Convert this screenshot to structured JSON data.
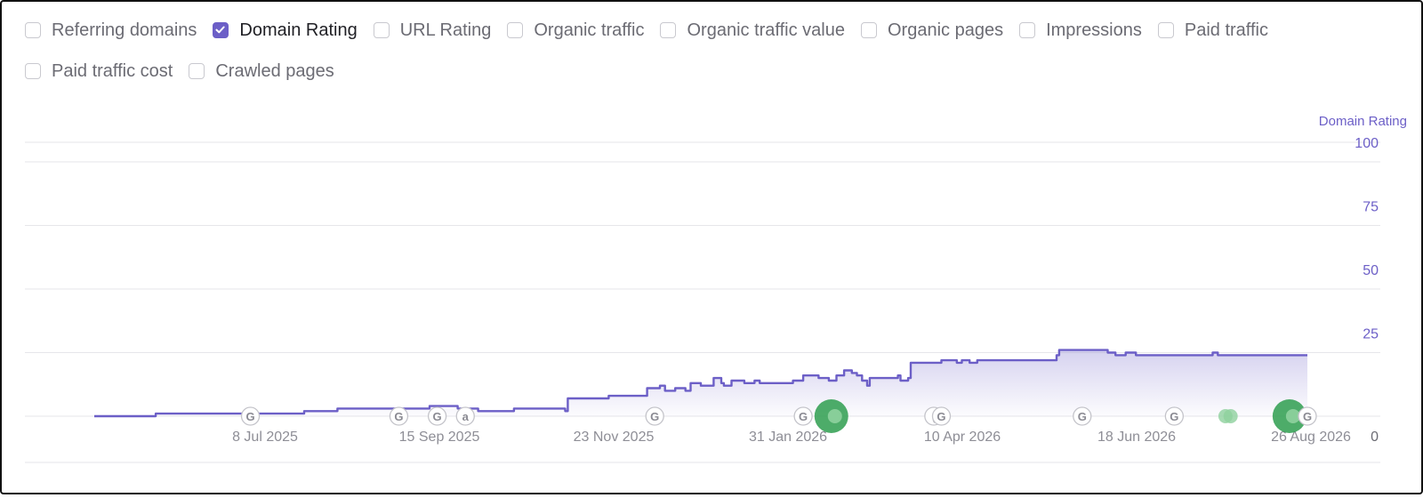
{
  "filters": [
    {
      "label": "Referring domains",
      "checked": false
    },
    {
      "label": "Domain Rating",
      "checked": true
    },
    {
      "label": "URL Rating",
      "checked": false
    },
    {
      "label": "Organic traffic",
      "checked": false
    },
    {
      "label": "Organic traffic value",
      "checked": false
    },
    {
      "label": "Organic pages",
      "checked": false
    },
    {
      "label": "Impressions",
      "checked": false
    },
    {
      "label": "Paid traffic",
      "checked": false
    },
    {
      "label": "Paid traffic cost",
      "checked": false
    },
    {
      "label": "Crawled pages",
      "checked": false
    }
  ],
  "colors": {
    "accent": "#6c5fc7",
    "line": "#6c5fc7",
    "grid": "#e6e6ea",
    "tick": "#8e8e96",
    "marker": "#2e9e4f"
  },
  "chart_data": {
    "type": "area",
    "ylabel": "Domain Rating",
    "ylim": [
      0,
      100
    ],
    "yticks": [
      0,
      25,
      50,
      75,
      100
    ],
    "x_ticks": [
      "8 Jul 2025",
      "15 Sep 2025",
      "23 Nov 2025",
      "31 Jan 2026",
      "10 Apr 2026",
      "18 Jun 2026",
      "26 Aug 2026"
    ],
    "grid": true,
    "x": [
      "2025-05-09",
      "2025-06-01",
      "2025-06-02",
      "2025-07-29",
      "2025-07-30",
      "2025-08-12",
      "2025-08-20",
      "2025-09-16",
      "2025-09-17",
      "2025-09-20",
      "2025-09-28",
      "2025-10-05",
      "2025-10-06",
      "2025-10-15",
      "2025-10-20",
      "2025-10-28",
      "2025-11-09",
      "2025-11-10",
      "2025-11-25",
      "2025-11-26",
      "2025-12-10",
      "2025-12-11",
      "2025-12-16",
      "2025-12-18",
      "2025-12-19",
      "2025-12-22",
      "2025-12-26",
      "2025-12-28",
      "2026-01-01",
      "2026-01-04",
      "2026-01-06",
      "2026-01-09",
      "2026-01-10",
      "2026-01-13",
      "2026-01-15",
      "2026-01-18",
      "2026-01-22",
      "2026-01-24",
      "2026-02-05",
      "2026-02-06",
      "2026-02-10",
      "2026-02-16",
      "2026-02-20",
      "2026-02-23",
      "2026-02-26",
      "2026-03-01",
      "2026-03-03",
      "2026-03-05",
      "2026-03-07",
      "2026-03-08",
      "2026-03-10",
      "2026-03-19",
      "2026-03-20",
      "2026-03-23",
      "2026-03-24",
      "2026-04-05",
      "2026-04-11",
      "2026-04-13",
      "2026-04-16",
      "2026-04-19",
      "2026-05-05",
      "2026-05-20",
      "2026-05-21",
      "2026-06-01",
      "2026-06-09",
      "2026-06-12",
      "2026-06-16",
      "2026-06-20",
      "2026-07-15",
      "2026-07-20",
      "2026-07-22",
      "2026-08-26"
    ],
    "series": [
      {
        "values": [
          0,
          0,
          1,
          1,
          2,
          3,
          3,
          3,
          4,
          4,
          3,
          3,
          2,
          2,
          3,
          3,
          2,
          7,
          7,
          8,
          8,
          11,
          12,
          10,
          10,
          11,
          10,
          13,
          12,
          12,
          15,
          13,
          12,
          14,
          14,
          13,
          14,
          13,
          13,
          14,
          16,
          15,
          14,
          16,
          18,
          17,
          16,
          14,
          12,
          15,
          15,
          16,
          14,
          15,
          21,
          22,
          21,
          22,
          21,
          22,
          22,
          24,
          26,
          26,
          25,
          24,
          25,
          24,
          24,
          25,
          24,
          24
        ]
      }
    ],
    "markers": [
      {
        "date": "2025-07-09",
        "label": "G"
      },
      {
        "date": "2025-09-05",
        "label": "G"
      },
      {
        "date": "2025-09-20",
        "label": "G"
      },
      {
        "date": "2025-10-01",
        "label": "a"
      },
      {
        "date": "2025-12-14",
        "label": "G"
      },
      {
        "date": "2026-02-10",
        "label": "G"
      },
      {
        "date": "2026-04-02",
        "label": "("
      },
      {
        "date": "2026-04-05",
        "label": "G"
      },
      {
        "date": "2026-05-30",
        "label": "G"
      },
      {
        "date": "2026-07-05",
        "label": "G"
      },
      {
        "date": "2026-08-26",
        "label": "G"
      }
    ],
    "events": [
      {
        "date": "2026-02-21",
        "size": "large"
      },
      {
        "date": "2026-07-25",
        "size": "small"
      },
      {
        "date": "2026-07-27",
        "size": "small"
      },
      {
        "date": "2026-08-19",
        "size": "large"
      }
    ]
  }
}
